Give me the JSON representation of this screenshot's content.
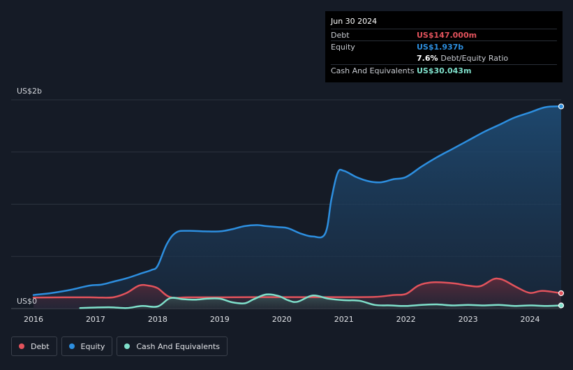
{
  "chart_data": {
    "type": "area",
    "title": "",
    "xlabel": "",
    "ylabel": "",
    "y_unit_labels": {
      "top": "US$2b",
      "bottom": "US$0"
    },
    "ylim": [
      0,
      2000
    ],
    "xlim": [
      2016.0,
      2024.5
    ],
    "x_ticks": [
      "2016",
      "2017",
      "2018",
      "2019",
      "2020",
      "2021",
      "2022",
      "2023",
      "2024"
    ],
    "series": [
      {
        "name": "Equity",
        "color": "#2d8fe0",
        "x": [
          2016.0,
          2016.3,
          2016.6,
          2016.9,
          2017.1,
          2017.3,
          2017.5,
          2017.75,
          2017.9,
          2018.0,
          2018.15,
          2018.3,
          2018.5,
          2018.75,
          2019.0,
          2019.2,
          2019.4,
          2019.6,
          2019.75,
          2019.95,
          2020.1,
          2020.3,
          2020.5,
          2020.7,
          2020.8,
          2020.9,
          2021.0,
          2021.2,
          2021.4,
          2021.6,
          2021.8,
          2022.0,
          2022.25,
          2022.5,
          2022.75,
          2023.0,
          2023.25,
          2023.5,
          2023.75,
          2024.0,
          2024.25,
          2024.5
        ],
        "values": [
          130,
          150,
          180,
          220,
          230,
          260,
          290,
          340,
          370,
          410,
          620,
          730,
          745,
          740,
          740,
          760,
          790,
          800,
          790,
          780,
          770,
          720,
          690,
          720,
          1050,
          1300,
          1320,
          1260,
          1220,
          1210,
          1240,
          1260,
          1360,
          1450,
          1530,
          1610,
          1690,
          1760,
          1830,
          1880,
          1930,
          1937
        ]
      },
      {
        "name": "Debt",
        "color": "#e2535c",
        "x": [
          2016.0,
          2016.5,
          2016.9,
          2017.1,
          2017.3,
          2017.5,
          2017.7,
          2017.85,
          2018.0,
          2018.2,
          2018.5,
          2019.0,
          2019.5,
          2020.0,
          2020.5,
          2021.0,
          2021.5,
          2021.8,
          2022.0,
          2022.2,
          2022.4,
          2022.6,
          2022.8,
          2023.0,
          2023.2,
          2023.4,
          2023.5,
          2023.6,
          2023.8,
          2024.0,
          2024.2,
          2024.5
        ],
        "values": [
          105,
          108,
          108,
          105,
          110,
          150,
          220,
          220,
          195,
          110,
          108,
          108,
          110,
          110,
          110,
          110,
          112,
          130,
          140,
          220,
          250,
          250,
          240,
          220,
          215,
          280,
          285,
          265,
          200,
          150,
          170,
          147
        ]
      },
      {
        "name": "Cash And Equivalents",
        "color": "#7fe0cb",
        "x": [
          2016.75,
          2017.0,
          2017.25,
          2017.5,
          2017.75,
          2018.0,
          2018.2,
          2018.4,
          2018.6,
          2018.8,
          2019.0,
          2019.2,
          2019.4,
          2019.55,
          2019.75,
          2019.95,
          2020.1,
          2020.25,
          2020.5,
          2020.75,
          2021.0,
          2021.25,
          2021.5,
          2021.75,
          2022.0,
          2022.25,
          2022.5,
          2022.75,
          2023.0,
          2023.25,
          2023.5,
          2023.75,
          2024.0,
          2024.25,
          2024.5
        ],
        "values": [
          5,
          10,
          12,
          5,
          25,
          20,
          100,
          90,
          85,
          95,
          95,
          60,
          50,
          90,
          135,
          120,
          80,
          65,
          125,
          95,
          80,
          75,
          35,
          30,
          25,
          35,
          40,
          30,
          35,
          30,
          35,
          25,
          30,
          25,
          30
        ]
      }
    ],
    "grid": true,
    "legend_position": "bottom-left",
    "tooltip": {
      "date": "Jun 30 2024",
      "debt_label": "Debt",
      "debt_value": "US$147.000m",
      "equity_label": "Equity",
      "equity_value": "US$1.937b",
      "ratio_value": "7.6%",
      "ratio_label": "Debt/Equity Ratio",
      "cash_label": "Cash And Equivalents",
      "cash_value": "US$30.043m"
    },
    "legend": [
      {
        "key": "debt",
        "label": "Debt",
        "color": "#e2535c"
      },
      {
        "key": "equity",
        "label": "Equity",
        "color": "#2d8fe0"
      },
      {
        "key": "cash",
        "label": "Cash And Equivalents",
        "color": "#7fe0cb"
      }
    ]
  }
}
